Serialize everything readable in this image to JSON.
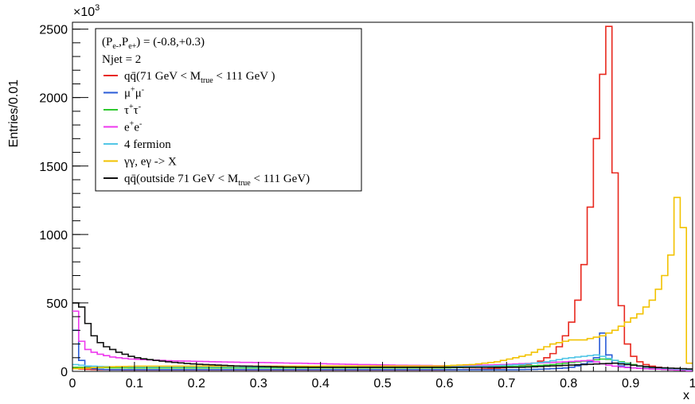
{
  "chart_data": {
    "type": "line",
    "xlabel": "x",
    "ylabel": "Entries/0.01",
    "y_multiplier_label": "×10",
    "y_multiplier_exp": "3",
    "xlim": [
      0,
      1
    ],
    "ylim": [
      0,
      2550
    ],
    "x_ticks": [
      0,
      0.1,
      0.2,
      0.3,
      0.4,
      0.5,
      0.6,
      0.7,
      0.8,
      0.9,
      1
    ],
    "x_tick_labels": [
      "0",
      "0.1",
      "0.2",
      "0.3",
      "0.4",
      "0.5",
      "0.6",
      "0.7",
      "0.8",
      "0.9",
      "1"
    ],
    "y_ticks": [
      0,
      500,
      1000,
      1500,
      2000,
      2500
    ],
    "y_tick_labels": [
      "0",
      "500",
      "1000",
      "1500",
      "2000",
      "2500"
    ],
    "bin_width": 0.01,
    "legend": {
      "position": "top-left",
      "header1": "(P",
      "header1_sub1": "e-",
      "header1_mid": ",P",
      "header1_sub2": "e+",
      "header1_tail": ") = (-0.8,+0.3)",
      "header2": "Njet = 2"
    },
    "series": [
      {
        "name": "qq̄(71 GeV < Mtrue < 111 GeV )",
        "label_main": "qq̄(71 GeV < M",
        "label_sub": "true",
        "label_tail": " < 111 GeV )",
        "color": "#e8281e",
        "values": [
          25,
          18,
          15,
          13,
          12,
          12,
          11,
          11,
          10,
          10,
          10,
          10,
          10,
          10,
          10,
          10,
          10,
          10,
          10,
          10,
          10,
          10,
          10,
          10,
          10,
          10,
          10,
          10,
          10,
          10,
          10,
          10,
          10,
          10,
          10,
          10,
          10,
          10,
          10,
          10,
          10,
          10,
          10,
          10,
          10,
          10,
          10,
          10,
          10,
          10,
          10,
          10,
          10,
          10,
          10,
          10,
          10,
          10,
          10,
          10,
          12,
          12,
          13,
          14,
          15,
          16,
          18,
          20,
          23,
          26,
          30,
          35,
          42,
          50,
          60,
          75,
          100,
          130,
          180,
          260,
          360,
          520,
          780,
          1200,
          1700,
          2170,
          2520,
          1450,
          480,
          200,
          110,
          70,
          50,
          38,
          30,
          25,
          22,
          20,
          18,
          15
        ]
      },
      {
        "name": "μ+μ-",
        "label_main": "μ",
        "label_sup1": "+",
        "label_mid": "μ",
        "label_sup2": "-",
        "color": "#2a5bd7",
        "values": [
          300,
          80,
          30,
          20,
          15,
          13,
          12,
          12,
          12,
          12,
          12,
          12,
          12,
          12,
          12,
          12,
          12,
          12,
          12,
          12,
          12,
          12,
          12,
          12,
          12,
          12,
          12,
          12,
          12,
          12,
          12,
          12,
          12,
          12,
          12,
          12,
          12,
          12,
          12,
          12,
          12,
          12,
          12,
          12,
          12,
          12,
          12,
          12,
          12,
          12,
          12,
          12,
          12,
          12,
          12,
          12,
          12,
          12,
          12,
          12,
          12,
          12,
          12,
          12,
          12,
          12,
          12,
          12,
          12,
          12,
          12,
          12,
          13,
          14,
          15,
          16,
          18,
          20,
          22,
          25,
          30,
          40,
          55,
          70,
          100,
          280,
          120,
          60,
          40,
          30,
          25,
          22,
          20,
          18,
          16,
          15,
          14,
          13,
          12,
          10
        ]
      },
      {
        "name": "τ+τ-",
        "label_main": "τ",
        "label_sup1": "+",
        "label_mid": "τ",
        "label_sup2": "-",
        "color": "#2fc92f",
        "values": [
          30,
          30,
          28,
          28,
          27,
          27,
          26,
          26,
          26,
          25,
          25,
          25,
          25,
          25,
          25,
          25,
          25,
          25,
          25,
          25,
          25,
          25,
          25,
          25,
          25,
          25,
          25,
          25,
          25,
          25,
          25,
          25,
          25,
          25,
          25,
          25,
          25,
          25,
          25,
          25,
          25,
          25,
          25,
          25,
          25,
          25,
          25,
          25,
          25,
          25,
          25,
          25,
          25,
          25,
          25,
          25,
          25,
          25,
          25,
          25,
          26,
          27,
          28,
          29,
          30,
          31,
          32,
          33,
          34,
          35,
          36,
          37,
          38,
          40,
          42,
          44,
          46,
          50,
          55,
          60,
          65,
          70,
          75,
          80,
          85,
          90,
          88,
          80,
          70,
          60,
          50,
          40,
          30,
          25,
          20,
          15,
          12,
          10,
          8,
          5
        ]
      },
      {
        "name": "e+e-",
        "label_main": "e",
        "label_sup1": "+",
        "label_mid": "e",
        "label_sup2": "-",
        "color": "#ee38ee",
        "values": [
          440,
          220,
          160,
          140,
          125,
          115,
          105,
          100,
          95,
          90,
          88,
          86,
          84,
          82,
          80,
          78,
          77,
          76,
          75,
          74,
          73,
          72,
          71,
          70,
          69,
          68,
          67,
          66,
          66,
          65,
          65,
          64,
          63,
          62,
          61,
          60,
          60,
          59,
          58,
          57,
          56,
          55,
          54,
          53,
          52,
          51,
          50,
          50,
          49,
          48,
          47,
          46,
          45,
          45,
          44,
          44,
          43,
          43,
          42,
          42,
          42,
          42,
          42,
          43,
          44,
          45,
          46,
          47,
          48,
          50,
          52,
          54,
          56,
          58,
          60,
          62,
          64,
          66,
          68,
          70,
          72,
          75,
          78,
          80,
          70,
          55,
          45,
          38,
          32,
          28,
          25,
          22,
          20,
          18,
          16,
          14,
          12,
          10,
          8,
          5
        ]
      },
      {
        "name": "4 fermion",
        "label_main": "4 fermion",
        "color": "#52c6e6",
        "values": [
          50,
          45,
          40,
          38,
          36,
          35,
          34,
          34,
          33,
          33,
          32,
          32,
          32,
          32,
          32,
          32,
          32,
          32,
          32,
          32,
          32,
          32,
          32,
          32,
          32,
          32,
          32,
          32,
          32,
          32,
          32,
          32,
          32,
          32,
          32,
          32,
          32,
          32,
          32,
          32,
          32,
          32,
          32,
          32,
          32,
          32,
          32,
          32,
          32,
          32,
          32,
          32,
          32,
          32,
          32,
          32,
          32,
          32,
          32,
          32,
          33,
          34,
          35,
          36,
          37,
          38,
          39,
          40,
          42,
          44,
          46,
          48,
          50,
          55,
          60,
          65,
          70,
          78,
          86,
          95,
          100,
          105,
          110,
          115,
          120,
          110,
          95,
          80,
          65,
          55,
          45,
          38,
          32,
          28,
          25,
          22,
          20,
          18,
          15,
          12
        ]
      },
      {
        "name": "γγ, eγ -> X",
        "label_main": "γγ, eγ -> X",
        "color": "#f2c200",
        "values": [
          20,
          22,
          25,
          28,
          30,
          32,
          34,
          35,
          36,
          37,
          38,
          38,
          38,
          38,
          38,
          38,
          38,
          38,
          38,
          38,
          38,
          38,
          38,
          38,
          38,
          38,
          38,
          38,
          38,
          38,
          38,
          38,
          38,
          38,
          38,
          38,
          38,
          38,
          38,
          38,
          40,
          40,
          40,
          40,
          40,
          40,
          40,
          40,
          40,
          40,
          40,
          40,
          40,
          40,
          40,
          40,
          40,
          40,
          40,
          40,
          42,
          44,
          46,
          48,
          50,
          55,
          60,
          65,
          70,
          80,
          90,
          100,
          110,
          120,
          140,
          160,
          180,
          200,
          210,
          220,
          230,
          230,
          230,
          240,
          250,
          260,
          280,
          300,
          330,
          360,
          390,
          420,
          470,
          520,
          600,
          700,
          850,
          1270,
          1050,
          60
        ]
      },
      {
        "name": "qq̄(outside 71 GeV < Mtrue < 111 GeV)",
        "label_main": "qq̄(outside 71 GeV < M",
        "label_sub": "true",
        "label_tail": " < 111 GeV)",
        "color": "#111111",
        "values": [
          500,
          470,
          350,
          260,
          210,
          180,
          160,
          140,
          125,
          110,
          100,
          92,
          86,
          80,
          75,
          70,
          66,
          62,
          58,
          55,
          52,
          50,
          48,
          46,
          44,
          42,
          40,
          39,
          38,
          37,
          36,
          35,
          34,
          33,
          32,
          32,
          31,
          31,
          30,
          30,
          30,
          30,
          30,
          30,
          30,
          30,
          30,
          30,
          30,
          30,
          30,
          30,
          30,
          30,
          30,
          30,
          30,
          30,
          30,
          30,
          30,
          30,
          30,
          30,
          30,
          30,
          30,
          30,
          30,
          30,
          30,
          30,
          30,
          32,
          34,
          36,
          38,
          40,
          42,
          44,
          46,
          48,
          50,
          52,
          54,
          56,
          58,
          60,
          55,
          50,
          45,
          40,
          35,
          30,
          28,
          26,
          24,
          22,
          20,
          18
        ]
      }
    ]
  }
}
